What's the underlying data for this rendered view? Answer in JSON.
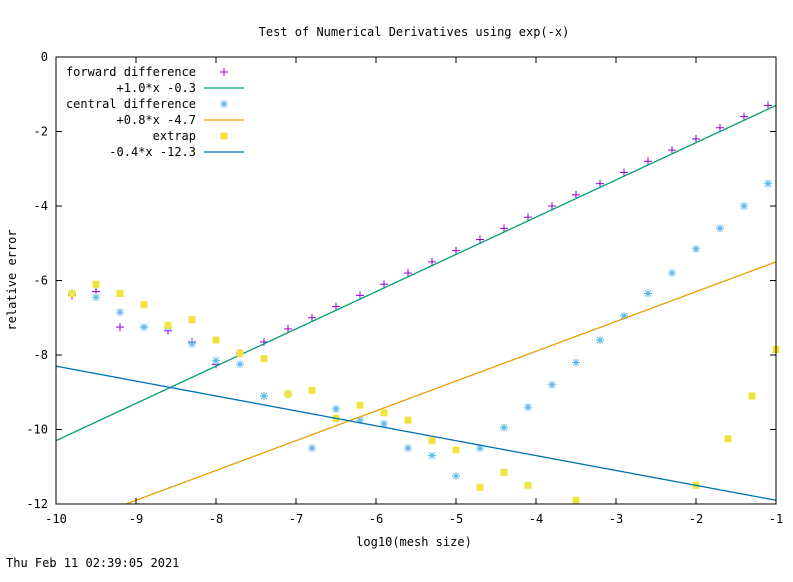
{
  "chart_data": {
    "type": "scatter",
    "title": "Test of Numerical Derivatives using exp(-x)",
    "xlabel": "log10(mesh size)",
    "ylabel": "relative error",
    "xlim": [
      -10,
      -1
    ],
    "ylim": [
      -12,
      0
    ],
    "x_ticks": [
      -10,
      -9,
      -8,
      -7,
      -6,
      -5,
      -4,
      -3,
      -2,
      -1
    ],
    "y_ticks": [
      -12,
      -10,
      -8,
      -6,
      -4,
      -2,
      0
    ],
    "grid": false,
    "legend_position": "top-left",
    "series": [
      {
        "name": "forward difference",
        "kind": "points",
        "marker": "plus",
        "color": "#9400d3",
        "x": [
          -9.8,
          -9.5,
          -9.2,
          -8.9,
          -8.6,
          -8.3,
          -8.0,
          -7.7,
          -7.4,
          -7.1,
          -6.8,
          -6.5,
          -6.2,
          -5.9,
          -5.6,
          -5.3,
          -5.0,
          -4.7,
          -4.4,
          -4.1,
          -3.8,
          -3.5,
          -3.2,
          -2.9,
          -2.6,
          -2.3,
          -2.0,
          -1.7,
          -1.4,
          -1.1
        ],
        "y": [
          -6.4,
          -6.3,
          -7.25,
          -7.25,
          -7.35,
          -7.65,
          -8.25,
          -7.95,
          -7.65,
          -7.3,
          -7.0,
          -6.7,
          -6.4,
          -6.1,
          -5.8,
          -5.5,
          -5.2,
          -4.9,
          -4.6,
          -4.3,
          -4.0,
          -3.7,
          -3.4,
          -3.1,
          -2.8,
          -2.5,
          -2.2,
          -1.9,
          -1.6,
          -1.3
        ]
      },
      {
        "name": "+1.0*x -0.3",
        "kind": "line",
        "color": "#009e73",
        "slope": 1.0,
        "intercept": -0.3
      },
      {
        "name": "central difference",
        "kind": "points",
        "marker": "star",
        "color": "#56b4e9",
        "x": [
          -9.8,
          -9.5,
          -9.2,
          -8.9,
          -8.6,
          -8.3,
          -8.0,
          -7.7,
          -7.4,
          -7.1,
          -6.8,
          -6.5,
          -6.2,
          -5.9,
          -5.6,
          -5.3,
          -5.0,
          -4.7,
          -4.4,
          -4.1,
          -3.8,
          -3.5,
          -3.2,
          -2.9,
          -2.6,
          -2.3,
          -2.0,
          -1.7,
          -1.4,
          -1.1
        ],
        "y": [
          -6.35,
          -6.45,
          -6.85,
          -7.25,
          -7.25,
          -7.7,
          -8.15,
          -8.25,
          -9.1,
          -9.05,
          -10.5,
          -9.45,
          -9.75,
          -9.85,
          -10.5,
          -10.7,
          -11.25,
          -10.5,
          -9.95,
          -9.4,
          -8.8,
          -8.2,
          -7.6,
          -6.95,
          -6.35,
          -5.8,
          -5.15,
          -4.6,
          -4.0,
          -3.4
        ]
      },
      {
        "name": "+0.8*x -4.7",
        "kind": "line",
        "color": "#e69f00",
        "slope": 0.8,
        "intercept": -4.7
      },
      {
        "name": "extrap",
        "kind": "points",
        "marker": "square",
        "color": "#f0e442",
        "x": [
          -9.8,
          -9.5,
          -9.2,
          -8.9,
          -8.6,
          -8.3,
          -8.0,
          -7.7,
          -7.4,
          -7.1,
          -6.8,
          -6.5,
          -6.2,
          -5.9,
          -5.6,
          -5.3,
          -5.0,
          -4.7,
          -4.4,
          -4.1,
          -3.5,
          -2.0,
          -1.6,
          -1.3,
          -1.0
        ],
        "y": [
          -6.35,
          -6.1,
          -6.35,
          -6.65,
          -7.2,
          -7.05,
          -7.6,
          -7.95,
          -8.1,
          -9.05,
          -8.95,
          -9.7,
          -9.35,
          -9.55,
          -9.75,
          -10.3,
          -10.55,
          -11.55,
          -11.15,
          -11.5,
          -11.9,
          -11.5,
          -10.25,
          -9.1,
          -7.85
        ]
      },
      {
        "name": "-0.4*x -12.3",
        "kind": "line",
        "color": "#0072b2",
        "slope": -0.4,
        "intercept": -12.3
      }
    ]
  },
  "footer": {
    "timestamp": "Thu Feb 11 02:39:05 2021"
  }
}
